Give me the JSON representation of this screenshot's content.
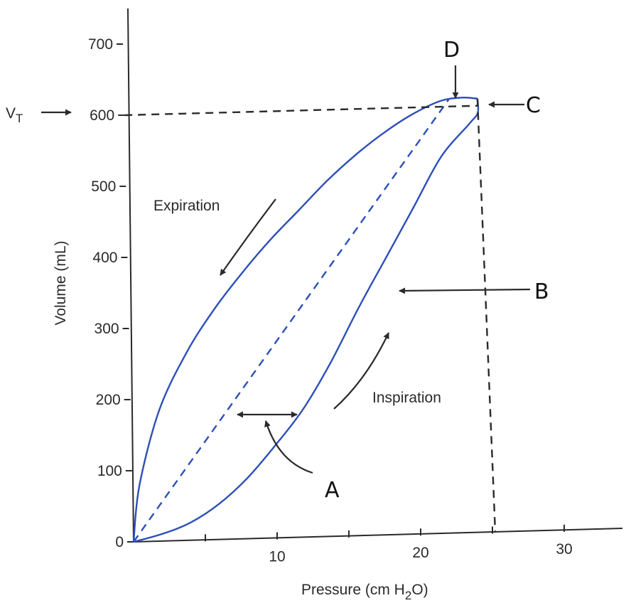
{
  "chart_data": {
    "type": "line",
    "title": "",
    "xlabel": "Pressure (cm H",
    "xlabel_sub": "2",
    "xlabel_end": "O)",
    "ylabel": "Volume (mL)",
    "xlim": [
      0,
      35
    ],
    "ylim": [
      0,
      750
    ],
    "x_ticks": [
      {
        "value": 5,
        "label": ""
      },
      {
        "value": 10,
        "label": "10"
      },
      {
        "value": 15,
        "label": ""
      },
      {
        "value": 20,
        "label": "20"
      },
      {
        "value": 25,
        "label": ""
      },
      {
        "value": 30,
        "label": "30"
      }
    ],
    "y_ticks": [
      {
        "value": 0,
        "label": "0"
      },
      {
        "value": 100,
        "label": "100"
      },
      {
        "value": 200,
        "label": "200"
      },
      {
        "value": 300,
        "label": "300"
      },
      {
        "value": 400,
        "label": "400"
      },
      {
        "value": 500,
        "label": "500"
      },
      {
        "value": 600,
        "label": "600"
      },
      {
        "value": 700,
        "label": "700"
      }
    ],
    "grid": false,
    "series": [
      {
        "role": "inspiration",
        "color": "#2c4fb8",
        "x": [
          0,
          2,
          4,
          6,
          8,
          10,
          12,
          14,
          16,
          18,
          20,
          22,
          24,
          24.6,
          24.6
        ],
        "y": [
          0,
          10,
          25,
          50,
          85,
          130,
          180,
          245,
          320,
          390,
          460,
          530,
          575,
          590,
          610
        ]
      },
      {
        "role": "expiration",
        "color": "#2c4fb8",
        "x": [
          24.6,
          23.5,
          22,
          20,
          18,
          16,
          14,
          12,
          10,
          8,
          6,
          4,
          2,
          0.5,
          0
        ],
        "y": [
          610,
          612,
          608,
          590,
          565,
          535,
          500,
          460,
          420,
          375,
          325,
          265,
          185,
          80,
          0
        ]
      },
      {
        "role": "compliance-line",
        "color": "#2c4fb8",
        "dashed": true,
        "x": [
          0,
          22.6
        ],
        "y": [
          0,
          610
        ]
      },
      {
        "role": "tidal-volume-reference",
        "color": "#2a2a2a",
        "dashed": true,
        "x": [
          0,
          24.6
        ],
        "y": [
          600,
          600
        ]
      },
      {
        "role": "peak-pressure-reference",
        "color": "#2a2a2a",
        "dashed": true,
        "x": [
          24.6,
          25.2
        ],
        "y": [
          610,
          0
        ]
      }
    ],
    "annotations": {
      "vt_label": "V",
      "vt_sub": "T",
      "expiration": "Expiration",
      "inspiration": "Inspiration",
      "letters": {
        "a": "A",
        "b": "B",
        "c": "C",
        "d": "D"
      }
    }
  }
}
